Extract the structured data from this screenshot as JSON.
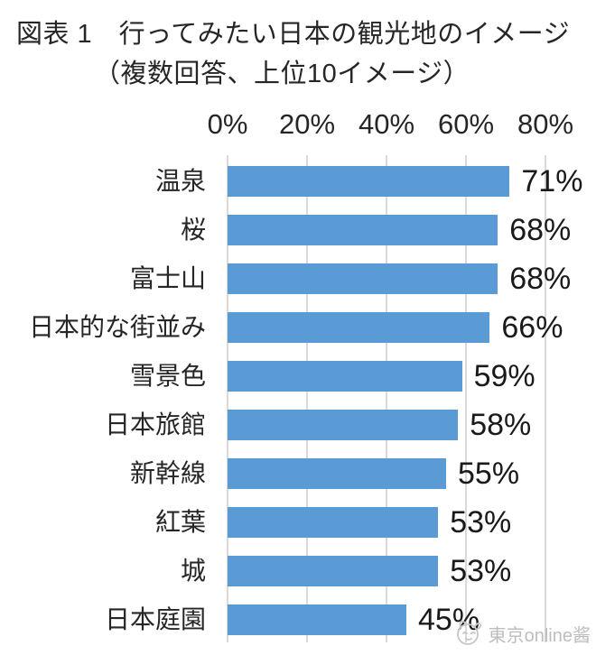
{
  "title": {
    "line1": "図表 1　行ってみたい日本の観光地のイメージ",
    "line2": "（複数回答、上位10イメージ）"
  },
  "chart_data": {
    "type": "bar",
    "orientation": "horizontal",
    "title": "図表 1　行ってみたい日本の観光地のイメージ（複数回答、上位10イメージ）",
    "categories": [
      "温泉",
      "桜",
      "富士山",
      "日本的な街並み",
      "雪景色",
      "日本旅館",
      "新幹線",
      "紅葉",
      "城",
      "日本庭園"
    ],
    "values": [
      71,
      68,
      68,
      66,
      59,
      58,
      55,
      53,
      53,
      45
    ],
    "value_labels": [
      "71%",
      "68%",
      "68%",
      "66%",
      "59%",
      "58%",
      "55%",
      "53%",
      "53%",
      "45%"
    ],
    "axis_ticks": [
      "0%",
      "20%",
      "40%",
      "60%",
      "80%"
    ],
    "xlim": [
      0,
      80
    ],
    "xlabel": "",
    "ylabel": "",
    "grid": true,
    "legend_position": "none",
    "bar_color": "#5B9BD5",
    "gridline_color": "#D9D9D9",
    "text_color": "#262626"
  },
  "watermark": {
    "text": "東京online酱",
    "icon": "mascot-face-icon",
    "color": "#bdbdbd"
  }
}
